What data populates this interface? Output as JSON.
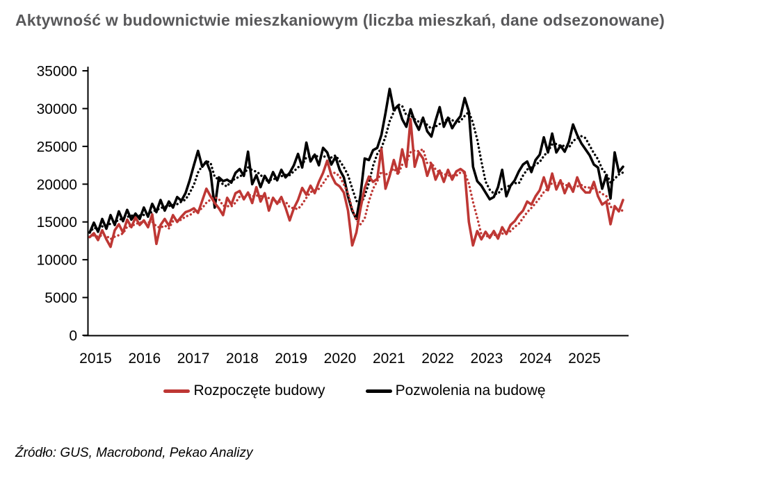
{
  "page": {
    "title": "Aktywność w budownictwie mieszkaniowym (liczba mieszkań, dane odsezonowane)",
    "title_color": "#58585a",
    "source_note": "Źródło: GUS, Macrobond, Pekao Analizy",
    "background_color": "#ffffff"
  },
  "chart_data": {
    "type": "line",
    "title": "Aktywność w budownictwie mieszkaniowym (liczba mieszkań, dane odsezonowane)",
    "x_frequency": "monthly",
    "x_start": "2015-01",
    "x_end": "2025-09",
    "x_tick_labels": [
      "2015",
      "2016",
      "2017",
      "2018",
      "2019",
      "2020",
      "2021",
      "2022",
      "2023",
      "2024",
      "2025"
    ],
    "y_ticks": [
      0,
      5000,
      10000,
      15000,
      20000,
      25000,
      30000,
      35000
    ],
    "ylim": [
      0,
      35000
    ],
    "grid": false,
    "legend_position": "bottom",
    "axis_color": "#000000",
    "trend_note": "each series also drawn as dotted trend line (4-month trailing moving average)",
    "series": [
      {
        "name": "Rozpoczęte budowy",
        "color": "#be3734",
        "style": "solid",
        "trend_dotted": true,
        "values": [
          13000,
          13500,
          12600,
          13900,
          12700,
          11700,
          13900,
          14700,
          13600,
          15300,
          14300,
          15600,
          14600,
          15200,
          14300,
          16000,
          12100,
          14600,
          15400,
          14500,
          15900,
          15000,
          15700,
          16300,
          16500,
          16800,
          16200,
          17800,
          19400,
          18400,
          17500,
          16800,
          15900,
          18200,
          17300,
          18800,
          19100,
          18000,
          18900,
          17500,
          19600,
          17700,
          18800,
          16500,
          18200,
          17400,
          18300,
          16900,
          15200,
          16800,
          17900,
          19500,
          18600,
          19800,
          18800,
          20300,
          21500,
          23100,
          21200,
          20100,
          19700,
          18900,
          16500,
          11900,
          13600,
          16800,
          19500,
          21000,
          20300,
          20700,
          24700,
          19400,
          21100,
          23200,
          21400,
          24600,
          22300,
          28600,
          22300,
          24200,
          23400,
          21100,
          22700,
          20600,
          21800,
          20300,
          21900,
          20600,
          21700,
          22000,
          21600,
          15000,
          11900,
          13800,
          12700,
          13700,
          12900,
          13800,
          12800,
          14300,
          13400,
          14600,
          15100,
          15900,
          16500,
          17700,
          17300,
          18400,
          19200,
          20900,
          19200,
          21400,
          19300,
          20500,
          18800,
          20100,
          19000,
          20900,
          19500,
          18900,
          18900,
          20300,
          18400,
          17300,
          17700,
          14700,
          17100,
          16400,
          17900
        ]
      },
      {
        "name": "Pozwolenia na budowę",
        "color": "#000000",
        "style": "solid",
        "trend_dotted": true,
        "values": [
          13600,
          14900,
          13700,
          15400,
          14100,
          15900,
          14600,
          16400,
          15100,
          16600,
          15300,
          16100,
          15400,
          16900,
          15700,
          17400,
          16300,
          17900,
          16500,
          17700,
          16900,
          18300,
          17800,
          18800,
          20500,
          22500,
          24400,
          22300,
          23000,
          21600,
          16900,
          20900,
          20400,
          20600,
          20200,
          21500,
          22000,
          21100,
          24300,
          20000,
          21200,
          19600,
          21100,
          20200,
          21600,
          20500,
          21900,
          20900,
          21500,
          22500,
          24000,
          22200,
          25500,
          23000,
          23900,
          22500,
          24800,
          24200,
          22600,
          23600,
          21900,
          20900,
          18400,
          16500,
          15400,
          18600,
          23400,
          23200,
          24500,
          24800,
          26500,
          29400,
          32600,
          29800,
          30400,
          28600,
          27600,
          29900,
          28300,
          27200,
          28800,
          27000,
          26300,
          28400,
          30200,
          27600,
          28800,
          27400,
          28300,
          29000,
          31400,
          29600,
          22300,
          20400,
          19800,
          18900,
          18000,
          18300,
          19600,
          21900,
          18400,
          19800,
          20500,
          21700,
          22600,
          23000,
          21600,
          23200,
          23900,
          26200,
          24200,
          26700,
          24200,
          25100,
          24300,
          25600,
          27900,
          26500,
          25400,
          24600,
          23800,
          22600,
          22200,
          19400,
          21200,
          18100,
          24200,
          21600,
          22300
        ]
      }
    ]
  }
}
